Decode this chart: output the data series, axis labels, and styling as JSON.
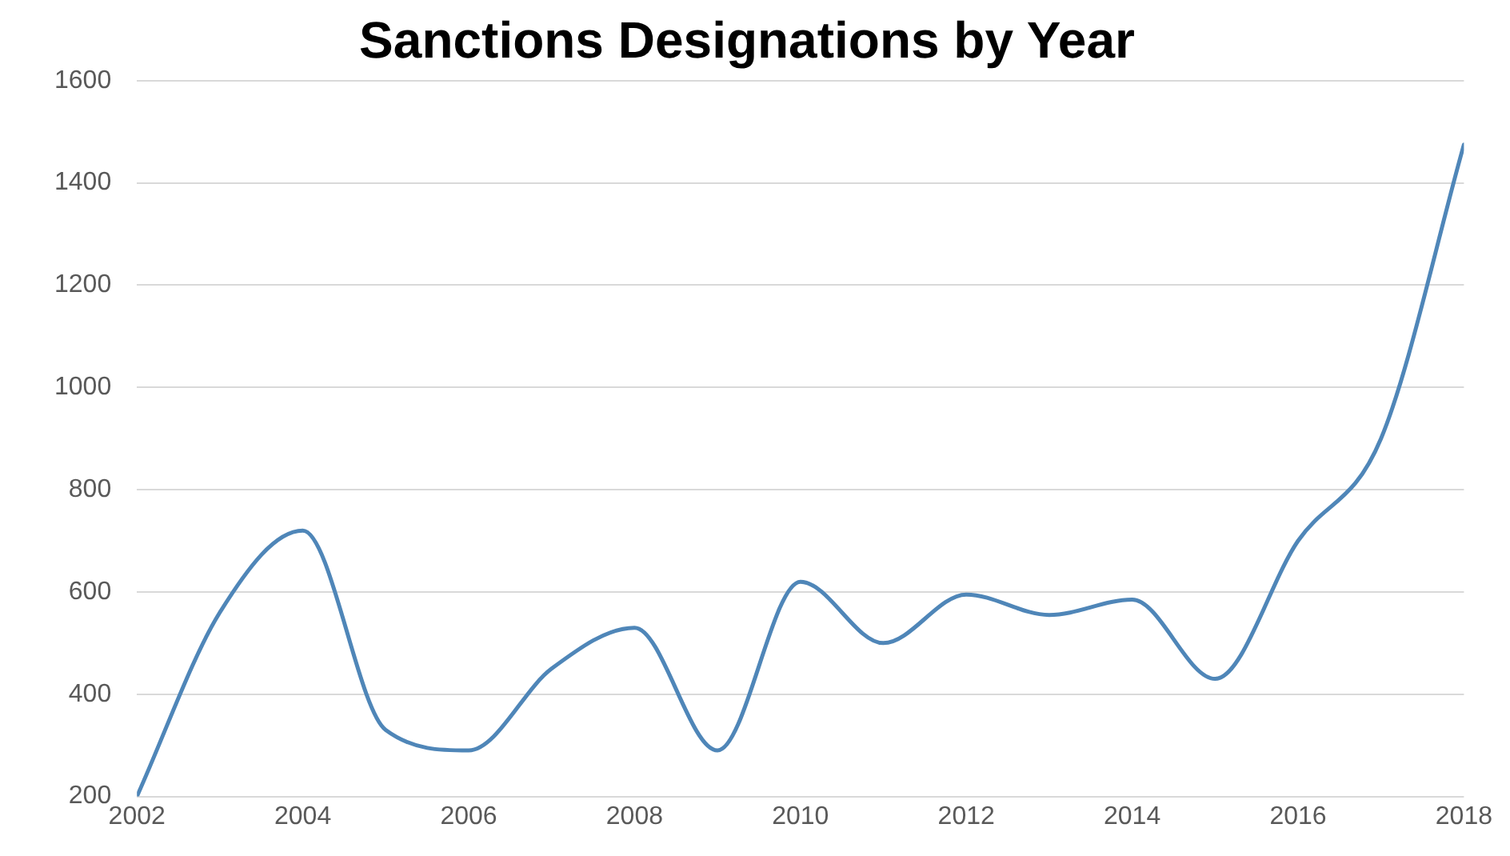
{
  "chart_data": {
    "type": "line",
    "title": "Sanctions Designations by Year",
    "x": [
      2002,
      2003,
      2004,
      2005,
      2006,
      2007,
      2008,
      2009,
      2010,
      2011,
      2012,
      2013,
      2014,
      2015,
      2016,
      2017,
      2018
    ],
    "series": [
      {
        "color": "#4f86b8",
        "values": [
          200,
          560,
          720,
          330,
          290,
          450,
          530,
          290,
          620,
          500,
          595,
          555,
          585,
          430,
          700,
          900,
          1475
        ]
      }
    ],
    "xlim": [
      2002,
      2018
    ],
    "xticks": [
      2002,
      2004,
      2006,
      2008,
      2010,
      2012,
      2014,
      2016,
      2018
    ],
    "ylim": [
      200,
      1600
    ],
    "yticks": [
      200,
      400,
      600,
      800,
      1000,
      1200,
      1400,
      1600
    ],
    "grid": "y",
    "legend": false,
    "marker": "none",
    "line_style": "solid"
  }
}
